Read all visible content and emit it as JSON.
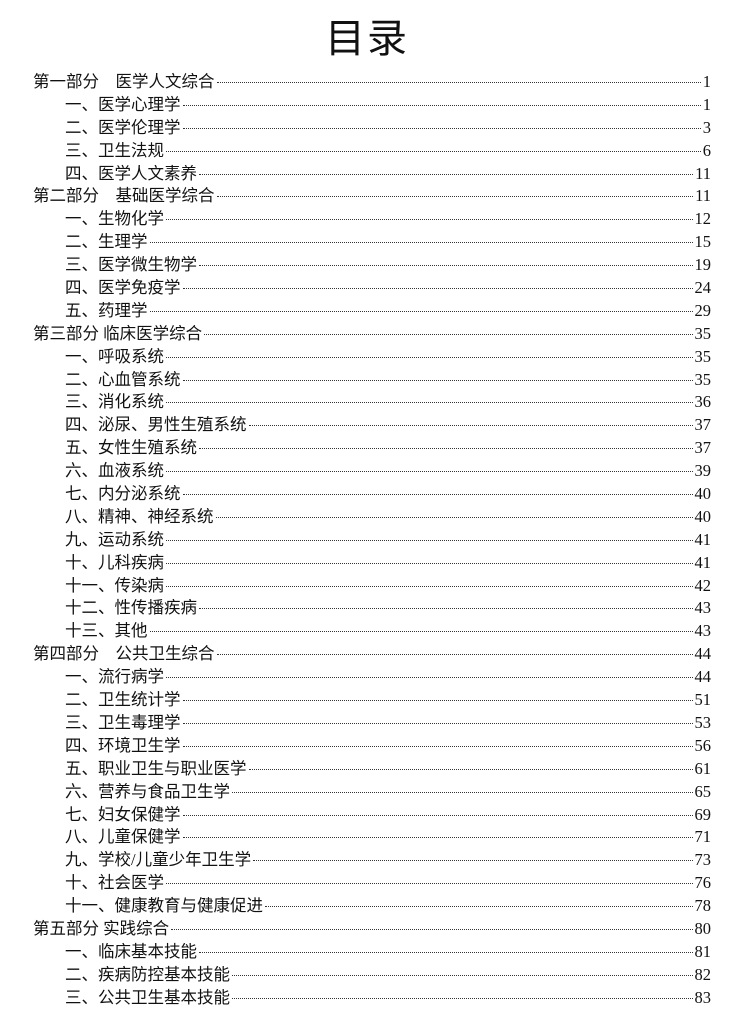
{
  "title": "目录",
  "entries": [
    {
      "level": 0,
      "label": "第一部分　医学人文综合",
      "page": "1"
    },
    {
      "level": 1,
      "label": "一、医学心理学",
      "page": "1"
    },
    {
      "level": 1,
      "label": "二、医学伦理学",
      "page": "3"
    },
    {
      "level": 1,
      "label": "三、卫生法规",
      "page": "6"
    },
    {
      "level": 1,
      "label": "四、医学人文素养",
      "page": "11"
    },
    {
      "level": 0,
      "label": "第二部分　基础医学综合",
      "page": "11"
    },
    {
      "level": 1,
      "label": "一、生物化学",
      "page": "12"
    },
    {
      "level": 1,
      "label": "二、生理学",
      "page": "15"
    },
    {
      "level": 1,
      "label": "三、医学微生物学",
      "page": "19"
    },
    {
      "level": 1,
      "label": "四、医学免疫学",
      "page": "24"
    },
    {
      "level": 1,
      "label": "五、药理学",
      "page": "29"
    },
    {
      "level": 0,
      "label": "第三部分 临床医学综合",
      "page": "35"
    },
    {
      "level": 1,
      "label": "一、呼吸系统",
      "page": "35"
    },
    {
      "level": 1,
      "label": "二、心血管系统",
      "page": "35"
    },
    {
      "level": 1,
      "label": "三、消化系统",
      "page": "36"
    },
    {
      "level": 1,
      "label": "四、泌尿、男性生殖系统",
      "page": "37"
    },
    {
      "level": 1,
      "label": "五、女性生殖系统",
      "page": "37"
    },
    {
      "level": 1,
      "label": "六、血液系统",
      "page": "39"
    },
    {
      "level": 1,
      "label": "七、内分泌系统",
      "page": "40"
    },
    {
      "level": 1,
      "label": "八、精神、神经系统",
      "page": "40"
    },
    {
      "level": 1,
      "label": "九、运动系统",
      "page": "41"
    },
    {
      "level": 1,
      "label": "十、儿科疾病",
      "page": "41"
    },
    {
      "level": 1,
      "label": "十一、传染病",
      "page": "42"
    },
    {
      "level": 1,
      "label": "十二、性传播疾病",
      "page": "43"
    },
    {
      "level": 1,
      "label": "十三、其他",
      "page": "43"
    },
    {
      "level": 0,
      "label": "第四部分　公共卫生综合",
      "page": "44"
    },
    {
      "level": 1,
      "label": "一、流行病学",
      "page": "44"
    },
    {
      "level": 1,
      "label": "二、卫生统计学",
      "page": "51"
    },
    {
      "level": 1,
      "label": "三、卫生毒理学",
      "page": "53"
    },
    {
      "level": 1,
      "label": "四、环境卫生学",
      "page": "56"
    },
    {
      "level": 1,
      "label": "五、职业卫生与职业医学",
      "page": "61"
    },
    {
      "level": 1,
      "label": "六、营养与食品卫生学",
      "page": "65"
    },
    {
      "level": 1,
      "label": "七、妇女保健学",
      "page": "69"
    },
    {
      "level": 1,
      "label": "八、儿童保健学",
      "page": "71"
    },
    {
      "level": 1,
      "label": "九、学校/儿童少年卫生学",
      "page": "73"
    },
    {
      "level": 1,
      "label": "十、社会医学",
      "page": "76"
    },
    {
      "level": 1,
      "label": "十一、健康教育与健康促进",
      "page": "78"
    },
    {
      "level": 0,
      "label": "第五部分 实践综合",
      "page": "80"
    },
    {
      "level": 1,
      "label": "一、临床基本技能",
      "page": "81"
    },
    {
      "level": 1,
      "label": "二、疾病防控基本技能",
      "page": "82"
    },
    {
      "level": 1,
      "label": "三、公共卫生基本技能",
      "page": "83"
    }
  ]
}
